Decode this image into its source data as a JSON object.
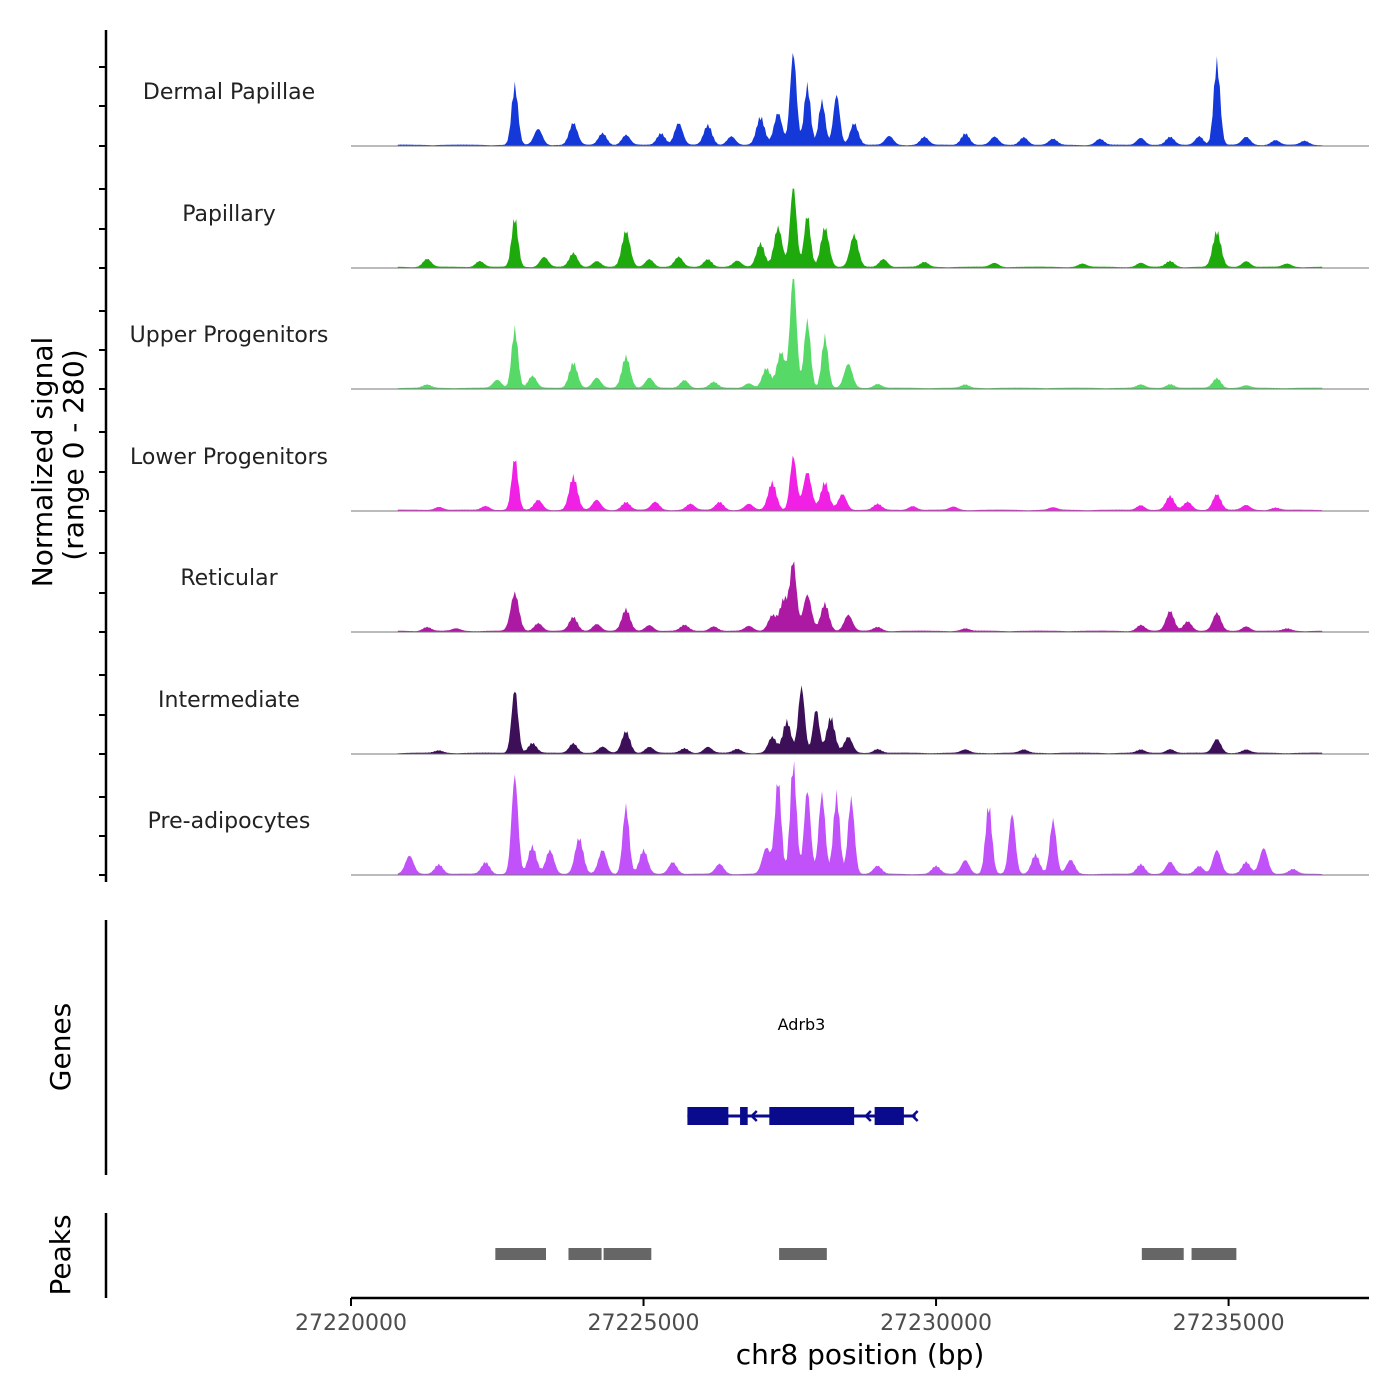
{
  "chart_data": {
    "type": "area",
    "title": "",
    "xlabel": "chr8 position (bp)",
    "ylabel": "Normalized signal",
    "ylabel_range": "(range 0 - 280)",
    "ylim": [
      0,
      280
    ],
    "xlim": [
      27220000,
      27237400
    ],
    "x_ticks": [
      {
        "value": 27220000,
        "label": "27220000"
      },
      {
        "value": 27225000,
        "label": "27225000"
      },
      {
        "value": 27230000,
        "label": "27230000"
      },
      {
        "value": 27235000,
        "label": "27235000"
      }
    ],
    "tracks_label": {
      "genes": "Genes",
      "peaks": "Peaks"
    },
    "series": [
      {
        "name": "Dermal Papillae",
        "color": "#1538d8",
        "peaks": [
          [
            27222800,
            150
          ],
          [
            27223200,
            40
          ],
          [
            27223800,
            55
          ],
          [
            27224300,
            30
          ],
          [
            27224700,
            25
          ],
          [
            27225300,
            30
          ],
          [
            27225600,
            55
          ],
          [
            27226100,
            50
          ],
          [
            27226500,
            22
          ],
          [
            27227000,
            70
          ],
          [
            27227300,
            80
          ],
          [
            27227560,
            230
          ],
          [
            27227800,
            150
          ],
          [
            27228050,
            110
          ],
          [
            27228300,
            125
          ],
          [
            27228600,
            55
          ],
          [
            27229200,
            22
          ],
          [
            27229800,
            20
          ],
          [
            27230500,
            30
          ],
          [
            27231000,
            20
          ],
          [
            27231500,
            20
          ],
          [
            27232000,
            15
          ],
          [
            27232800,
            15
          ],
          [
            27233500,
            18
          ],
          [
            27234000,
            20
          ],
          [
            27234500,
            22
          ],
          [
            27234800,
            210
          ],
          [
            27235300,
            20
          ],
          [
            27235800,
            12
          ],
          [
            27236300,
            10
          ]
        ]
      },
      {
        "name": "Papillary",
        "color": "#1eaa0c",
        "peaks": [
          [
            27221300,
            20
          ],
          [
            27222200,
            15
          ],
          [
            27222800,
            125
          ],
          [
            27223300,
            25
          ],
          [
            27223800,
            35
          ],
          [
            27224200,
            15
          ],
          [
            27224700,
            90
          ],
          [
            27225100,
            20
          ],
          [
            27225600,
            25
          ],
          [
            27226100,
            20
          ],
          [
            27226600,
            15
          ],
          [
            27227000,
            60
          ],
          [
            27227300,
            100
          ],
          [
            27227560,
            200
          ],
          [
            27227800,
            130
          ],
          [
            27228100,
            100
          ],
          [
            27228600,
            80
          ],
          [
            27229100,
            20
          ],
          [
            27229800,
            12
          ],
          [
            27231000,
            10
          ],
          [
            27232500,
            8
          ],
          [
            27233500,
            10
          ],
          [
            27234000,
            15
          ],
          [
            27234800,
            90
          ],
          [
            27235300,
            15
          ],
          [
            27236000,
            8
          ]
        ]
      },
      {
        "name": "Upper Progenitors",
        "color": "#57d968",
        "peaks": [
          [
            27221300,
            8
          ],
          [
            27222500,
            20
          ],
          [
            27222800,
            150
          ],
          [
            27223100,
            30
          ],
          [
            27223800,
            65
          ],
          [
            27224200,
            25
          ],
          [
            27224700,
            80
          ],
          [
            27225100,
            25
          ],
          [
            27225700,
            20
          ],
          [
            27226200,
            15
          ],
          [
            27226800,
            12
          ],
          [
            27227100,
            50
          ],
          [
            27227350,
            90
          ],
          [
            27227560,
            280
          ],
          [
            27227800,
            170
          ],
          [
            27228100,
            130
          ],
          [
            27228500,
            60
          ],
          [
            27229000,
            10
          ],
          [
            27230500,
            8
          ],
          [
            27233500,
            8
          ],
          [
            27234000,
            10
          ],
          [
            27234800,
            25
          ],
          [
            27235300,
            6
          ]
        ]
      },
      {
        "name": "Lower Progenitors",
        "color": "#f020e4",
        "peaks": [
          [
            27221500,
            8
          ],
          [
            27222300,
            10
          ],
          [
            27222800,
            130
          ],
          [
            27223200,
            25
          ],
          [
            27223800,
            85
          ],
          [
            27224200,
            25
          ],
          [
            27224700,
            20
          ],
          [
            27225200,
            20
          ],
          [
            27225800,
            15
          ],
          [
            27226300,
            20
          ],
          [
            27226800,
            15
          ],
          [
            27227200,
            70
          ],
          [
            27227560,
            135
          ],
          [
            27227800,
            95
          ],
          [
            27228100,
            70
          ],
          [
            27228400,
            40
          ],
          [
            27229000,
            15
          ],
          [
            27229600,
            10
          ],
          [
            27230300,
            8
          ],
          [
            27232000,
            6
          ],
          [
            27233500,
            12
          ],
          [
            27234000,
            35
          ],
          [
            27234300,
            20
          ],
          [
            27234800,
            40
          ],
          [
            27235300,
            12
          ],
          [
            27235800,
            6
          ]
        ]
      },
      {
        "name": "Reticular",
        "color": "#ac1aa4",
        "peaks": [
          [
            27221300,
            10
          ],
          [
            27221800,
            6
          ],
          [
            27222800,
            95
          ],
          [
            27223200,
            20
          ],
          [
            27223800,
            35
          ],
          [
            27224200,
            18
          ],
          [
            27224700,
            55
          ],
          [
            27225100,
            15
          ],
          [
            27225700,
            15
          ],
          [
            27226200,
            12
          ],
          [
            27226800,
            12
          ],
          [
            27227200,
            40
          ],
          [
            27227400,
            80
          ],
          [
            27227560,
            170
          ],
          [
            27227800,
            90
          ],
          [
            27228100,
            70
          ],
          [
            27228500,
            40
          ],
          [
            27229000,
            10
          ],
          [
            27230500,
            6
          ],
          [
            27233500,
            15
          ],
          [
            27234000,
            50
          ],
          [
            27234300,
            25
          ],
          [
            27234800,
            45
          ],
          [
            27235300,
            12
          ],
          [
            27236000,
            6
          ]
        ]
      },
      {
        "name": "Intermediate",
        "color": "#3c0f58",
        "peaks": [
          [
            27221500,
            6
          ],
          [
            27222800,
            160
          ],
          [
            27223100,
            25
          ],
          [
            27223800,
            25
          ],
          [
            27224300,
            15
          ],
          [
            27224700,
            55
          ],
          [
            27225100,
            15
          ],
          [
            27225700,
            12
          ],
          [
            27226100,
            15
          ],
          [
            27226600,
            10
          ],
          [
            27227200,
            40
          ],
          [
            27227450,
            80
          ],
          [
            27227700,
            165
          ],
          [
            27227950,
            110
          ],
          [
            27228200,
            90
          ],
          [
            27228500,
            40
          ],
          [
            27229000,
            10
          ],
          [
            27230500,
            8
          ],
          [
            27231500,
            8
          ],
          [
            27233500,
            8
          ],
          [
            27234000,
            10
          ],
          [
            27234800,
            35
          ],
          [
            27235300,
            8
          ]
        ]
      },
      {
        "name": "Pre-adipocytes",
        "color": "#c152fa",
        "peaks": [
          [
            27221000,
            45
          ],
          [
            27221500,
            25
          ],
          [
            27222300,
            30
          ],
          [
            27222800,
            245
          ],
          [
            27223100,
            70
          ],
          [
            27223400,
            60
          ],
          [
            27223900,
            90
          ],
          [
            27224300,
            60
          ],
          [
            27224700,
            170
          ],
          [
            27225000,
            60
          ],
          [
            27225500,
            30
          ],
          [
            27226300,
            25
          ],
          [
            27227100,
            65
          ],
          [
            27227300,
            235
          ],
          [
            27227560,
            280
          ],
          [
            27227800,
            210
          ],
          [
            27228050,
            200
          ],
          [
            27228300,
            200
          ],
          [
            27228550,
            190
          ],
          [
            27229000,
            20
          ],
          [
            27230000,
            20
          ],
          [
            27230500,
            35
          ],
          [
            27230900,
            175
          ],
          [
            27231300,
            150
          ],
          [
            27231700,
            50
          ],
          [
            27232000,
            135
          ],
          [
            27232300,
            35
          ],
          [
            27233500,
            25
          ],
          [
            27234000,
            30
          ],
          [
            27234500,
            20
          ],
          [
            27234800,
            60
          ],
          [
            27235300,
            30
          ],
          [
            27235600,
            65
          ],
          [
            27236100,
            12
          ]
        ]
      }
    ],
    "genes": [
      {
        "name": "Adrb3",
        "strand": "-",
        "start": 27225750,
        "end": 27229650,
        "exons": [
          [
            27225750,
            27226450
          ],
          [
            27226650,
            27226780
          ],
          [
            27227150,
            27228600
          ],
          [
            27228950,
            27229450
          ]
        ]
      }
    ],
    "peak_regions": [
      [
        27222450,
        27223350
      ],
      [
        27223700,
        27224300
      ],
      [
        27224300,
        27225150
      ],
      [
        27227300,
        27228150
      ],
      [
        27233500,
        27234250
      ],
      [
        27234350,
        27235150
      ]
    ]
  }
}
